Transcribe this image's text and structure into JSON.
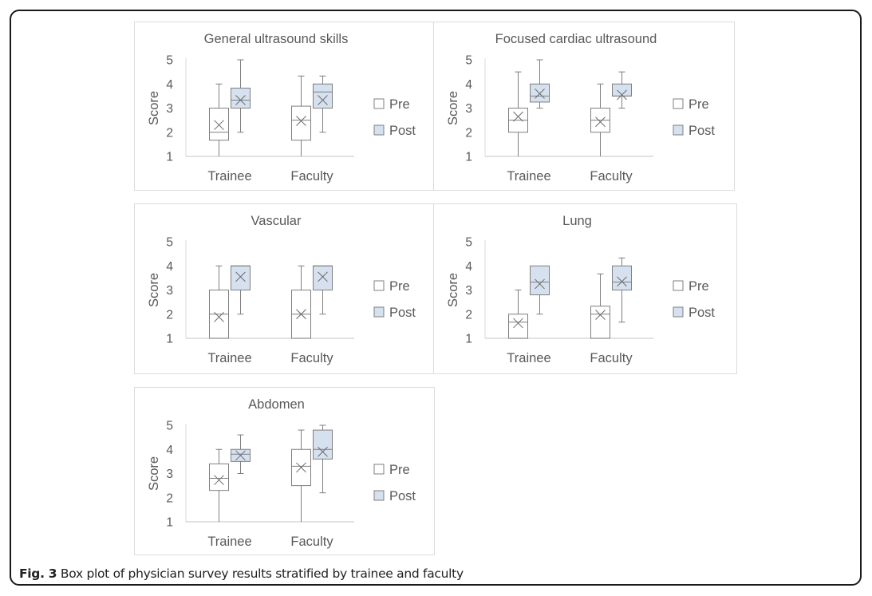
{
  "caption": {
    "label": "Fig. 3",
    "text": " Box plot of physician survey results stratified by trainee and faculty"
  },
  "colors": {
    "pre_fill": "#ffffff",
    "post_fill": "#d6e1ef",
    "stroke": "#7f7f7f",
    "axis": "#d9d9d9",
    "text": "#595959"
  },
  "chart_data": [
    {
      "type": "box",
      "title": "General ultrasound skills",
      "xlabel": "",
      "ylabel": "Score",
      "ylim": [
        1,
        5
      ],
      "yticks": [
        "1",
        "2",
        "3",
        "4",
        "5"
      ],
      "categories": [
        "Trainee",
        "Faculty"
      ],
      "legend": [
        "Pre",
        "Post"
      ],
      "legend_position": "right",
      "grid": false,
      "series": [
        {
          "name": "Pre",
          "boxes": [
            {
              "min": 1,
              "q1": 1.67,
              "median": 2,
              "q3": 3,
              "max": 4,
              "mean": 2.3
            },
            {
              "min": 1,
              "q1": 1.67,
              "median": 2.5,
              "q3": 3.08,
              "max": 4.33,
              "mean": 2.47
            }
          ]
        },
        {
          "name": "Post",
          "boxes": [
            {
              "min": 2,
              "q1": 3,
              "median": 3.33,
              "q3": 3.83,
              "max": 5,
              "mean": 3.33
            },
            {
              "min": 2,
              "q1": 3,
              "median": 3.67,
              "q3": 4,
              "max": 4.33,
              "mean": 3.33
            }
          ]
        }
      ]
    },
    {
      "type": "box",
      "title": "Focused cardiac ultrasound",
      "xlabel": "",
      "ylabel": "Score",
      "ylim": [
        1,
        5
      ],
      "yticks": [
        "1",
        "2",
        "3",
        "4",
        "5"
      ],
      "categories": [
        "Trainee",
        "Faculty"
      ],
      "legend": [
        "Pre",
        "Post"
      ],
      "legend_position": "right",
      "grid": false,
      "series": [
        {
          "name": "Pre",
          "boxes": [
            {
              "min": 1,
              "q1": 2,
              "median": 2.5,
              "q3": 3,
              "max": 4.5,
              "mean": 2.65
            },
            {
              "min": 1,
              "q1": 2,
              "median": 2.5,
              "q3": 3,
              "max": 4,
              "mean": 2.43
            }
          ]
        },
        {
          "name": "Post",
          "boxes": [
            {
              "min": 3,
              "q1": 3.25,
              "median": 3.5,
              "q3": 4,
              "max": 5,
              "mean": 3.6
            },
            {
              "min": 3,
              "q1": 3.5,
              "median": 3.5,
              "q3": 4,
              "max": 4.5,
              "mean": 3.55
            }
          ]
        }
      ]
    },
    {
      "type": "box",
      "title": "Vascular",
      "xlabel": "",
      "ylabel": "Score",
      "ylim": [
        1,
        5
      ],
      "yticks": [
        "1",
        "2",
        "3",
        "4",
        "5"
      ],
      "categories": [
        "Trainee",
        "Faculty"
      ],
      "legend": [
        "Pre",
        "Post"
      ],
      "legend_position": "right",
      "grid": false,
      "series": [
        {
          "name": "Pre",
          "boxes": [
            {
              "min": 1,
              "q1": 1,
              "median": 2,
              "q3": 3,
              "max": 4,
              "mean": 1.88
            },
            {
              "min": 1,
              "q1": 1,
              "median": 2,
              "q3": 3,
              "max": 4,
              "mean": 2
            }
          ]
        },
        {
          "name": "Post",
          "boxes": [
            {
              "min": 2,
              "q1": 3,
              "median": 4,
              "q3": 4,
              "max": 4,
              "mean": 3.55
            },
            {
              "min": 2,
              "q1": 3,
              "median": 4,
              "q3": 4,
              "max": 4,
              "mean": 3.55
            }
          ]
        }
      ]
    },
    {
      "type": "box",
      "title": "Lung",
      "xlabel": "",
      "ylabel": "Score",
      "ylim": [
        1,
        5
      ],
      "yticks": [
        "1",
        "2",
        "3",
        "4",
        "5"
      ],
      "categories": [
        "Trainee",
        "Faculty"
      ],
      "legend": [
        "Pre",
        "Post"
      ],
      "legend_position": "right",
      "grid": false,
      "series": [
        {
          "name": "Pre",
          "boxes": [
            {
              "min": 1,
              "q1": 1,
              "median": 1.67,
              "q3": 2,
              "max": 3,
              "mean": 1.63
            },
            {
              "min": 1,
              "q1": 1,
              "median": 2,
              "q3": 2.33,
              "max": 3.67,
              "mean": 1.97
            }
          ]
        },
        {
          "name": "Post",
          "boxes": [
            {
              "min": 2,
              "q1": 2.8,
              "median": 3.33,
              "q3": 4,
              "max": 4,
              "mean": 3.25
            },
            {
              "min": 1.67,
              "q1": 3,
              "median": 3.33,
              "q3": 4,
              "max": 4.33,
              "mean": 3.35
            }
          ]
        }
      ]
    },
    {
      "type": "box",
      "title": "Abdomen",
      "xlabel": "",
      "ylabel": "Score",
      "ylim": [
        1,
        5
      ],
      "yticks": [
        "1",
        "2",
        "3",
        "4",
        "5"
      ],
      "categories": [
        "Trainee",
        "Faculty"
      ],
      "legend": [
        "Pre",
        "Post"
      ],
      "legend_position": "right",
      "grid": false,
      "series": [
        {
          "name": "Pre",
          "boxes": [
            {
              "min": 1,
              "q1": 2.3,
              "median": 2.8,
              "q3": 3.4,
              "max": 4,
              "mean": 2.73
            },
            {
              "min": 1,
              "q1": 2.5,
              "median": 3.3,
              "q3": 4,
              "max": 4.8,
              "mean": 3.25
            }
          ]
        },
        {
          "name": "Post",
          "boxes": [
            {
              "min": 3,
              "q1": 3.5,
              "median": 3.8,
              "q3": 4,
              "max": 4.6,
              "mean": 3.75
            },
            {
              "min": 2.2,
              "q1": 3.6,
              "median": 4,
              "q3": 4.8,
              "max": 5,
              "mean": 3.9
            }
          ]
        }
      ]
    }
  ]
}
